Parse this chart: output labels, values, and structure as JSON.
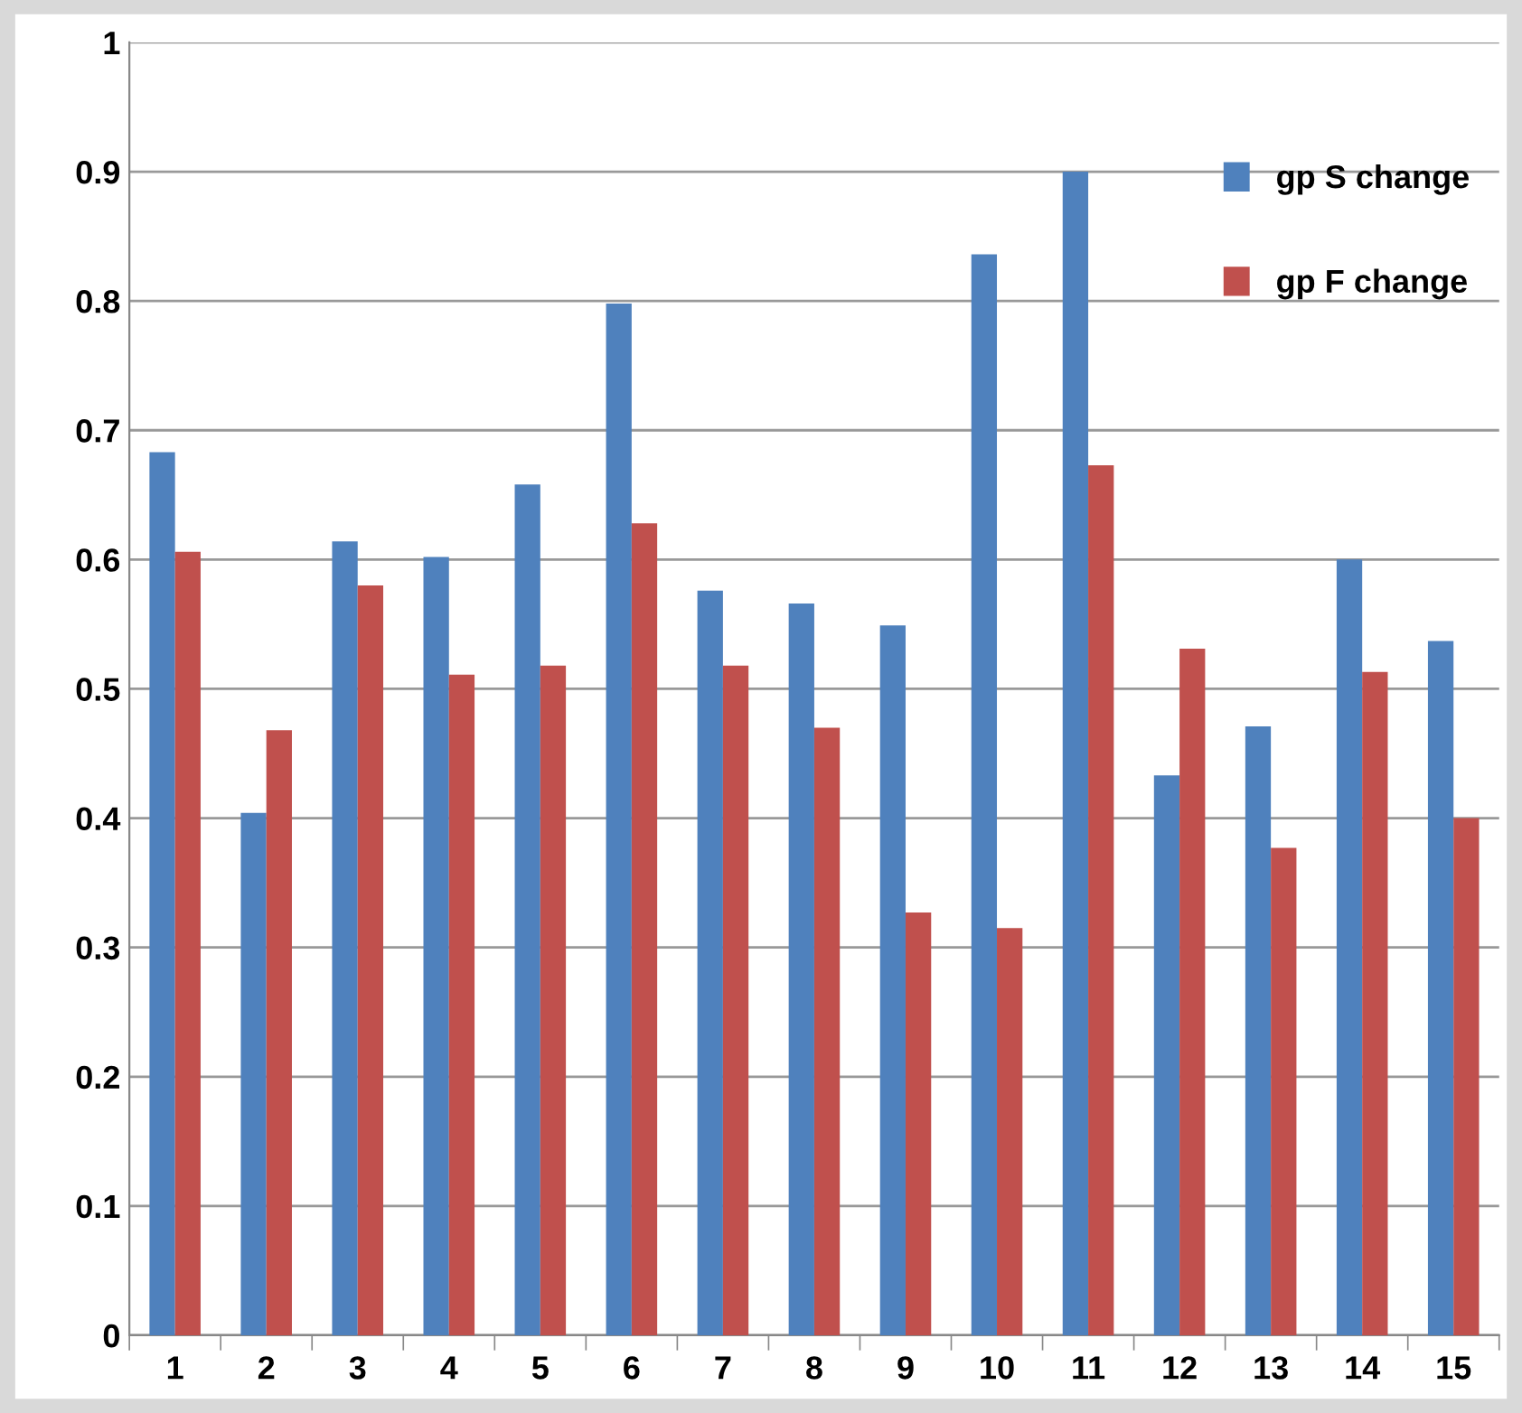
{
  "chart_data": {
    "type": "bar",
    "categories": [
      "1",
      "2",
      "3",
      "4",
      "5",
      "6",
      "7",
      "8",
      "9",
      "10",
      "11",
      "12",
      "13",
      "14",
      "15"
    ],
    "series": [
      {
        "name": "gp S change",
        "color": "#4f81bd",
        "values": [
          0.683,
          0.404,
          0.614,
          0.602,
          0.658,
          0.798,
          0.576,
          0.566,
          0.549,
          0.836,
          0.9,
          0.433,
          0.471,
          0.6,
          0.537
        ]
      },
      {
        "name": "gp F change",
        "color": "#c0504d",
        "values": [
          0.606,
          0.468,
          0.58,
          0.511,
          0.518,
          0.628,
          0.518,
          0.47,
          0.327,
          0.315,
          0.673,
          0.531,
          0.377,
          0.513,
          0.4
        ]
      }
    ],
    "ylim": [
      0,
      1
    ],
    "yticks": [
      0,
      0.1,
      0.2,
      0.3,
      0.4,
      0.5,
      0.6,
      0.7,
      0.8,
      0.9,
      1
    ],
    "grid": "y",
    "legend": "top right"
  }
}
